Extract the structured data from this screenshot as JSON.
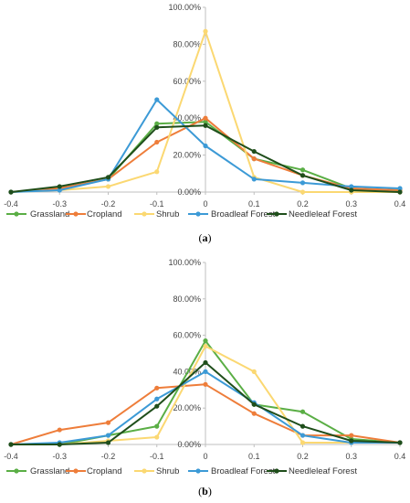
{
  "chart_data": [
    {
      "type": "line",
      "caption": "(a)",
      "caption_letter": "a",
      "x": [
        -0.4,
        -0.3,
        -0.2,
        -0.1,
        0,
        0.1,
        0.2,
        0.3,
        0.4
      ],
      "x_tick_labels": [
        "-0.4",
        "-0.3",
        "-0.2",
        "-0.1",
        "0",
        "0.1",
        "0.2",
        "0.3",
        "0.4"
      ],
      "ylim": [
        0,
        100
      ],
      "y_ticks": [
        0,
        20,
        40,
        60,
        80,
        100
      ],
      "y_tick_labels": [
        "0.00%",
        "20.00%",
        "40.00%",
        "60.00%",
        "80.00%",
        "100.00%"
      ],
      "grid": false,
      "legend_position": "bottom",
      "series": [
        {
          "name": "Grassland",
          "color": "#5aae45",
          "values": [
            0,
            2,
            7,
            37,
            38,
            18,
            12,
            2,
            1
          ]
        },
        {
          "name": "Cropland",
          "color": "#ee7d3a",
          "values": [
            0,
            2,
            7,
            27,
            40,
            18,
            9,
            2,
            1
          ]
        },
        {
          "name": "Shrub",
          "color": "#fbd872",
          "values": [
            0,
            1,
            3,
            11,
            87,
            8,
            0,
            0,
            0
          ]
        },
        {
          "name": "Broadleaf Forest",
          "color": "#3c9ad6",
          "values": [
            0,
            1,
            7,
            50,
            25,
            7,
            5,
            3,
            2
          ]
        },
        {
          "name": "Needleleaf Forest",
          "color": "#1f4e1b",
          "values": [
            0,
            3,
            8,
            35,
            36,
            22,
            9,
            1,
            0
          ]
        }
      ]
    },
    {
      "type": "line",
      "caption": "(b)",
      "caption_letter": "b",
      "x": [
        -0.4,
        -0.3,
        -0.2,
        -0.1,
        0,
        0.1,
        0.2,
        0.3,
        0.4
      ],
      "x_tick_labels": [
        "-0.4",
        "-0.3",
        "-0.2",
        "-0.1",
        "0",
        "0.1",
        "0.2",
        "0.3",
        "0.4"
      ],
      "ylim": [
        0,
        100
      ],
      "y_ticks": [
        0,
        20,
        40,
        60,
        80,
        100
      ],
      "y_tick_labels": [
        "0.00%",
        "20.00%",
        "40.00%",
        "60.00%",
        "80.00%",
        "100.00%"
      ],
      "grid": false,
      "legend_position": "bottom",
      "series": [
        {
          "name": "Grassland",
          "color": "#5aae45",
          "values": [
            0,
            0,
            5,
            10,
            57,
            22,
            18,
            3,
            1
          ]
        },
        {
          "name": "Cropland",
          "color": "#ee7d3a",
          "values": [
            0,
            8,
            12,
            31,
            33,
            17,
            5,
            5,
            1
          ]
        },
        {
          "name": "Shrub",
          "color": "#fbd872",
          "values": [
            0,
            0,
            2,
            4,
            54,
            40,
            1,
            1,
            1
          ]
        },
        {
          "name": "Broadleaf Forest",
          "color": "#3c9ad6",
          "values": [
            0,
            1,
            5,
            25,
            40,
            23,
            5,
            1,
            1
          ]
        },
        {
          "name": "Needleleaf Forest",
          "color": "#1f4e1b",
          "values": [
            0,
            0,
            1,
            21,
            45,
            22,
            10,
            2,
            1
          ]
        }
      ]
    }
  ]
}
